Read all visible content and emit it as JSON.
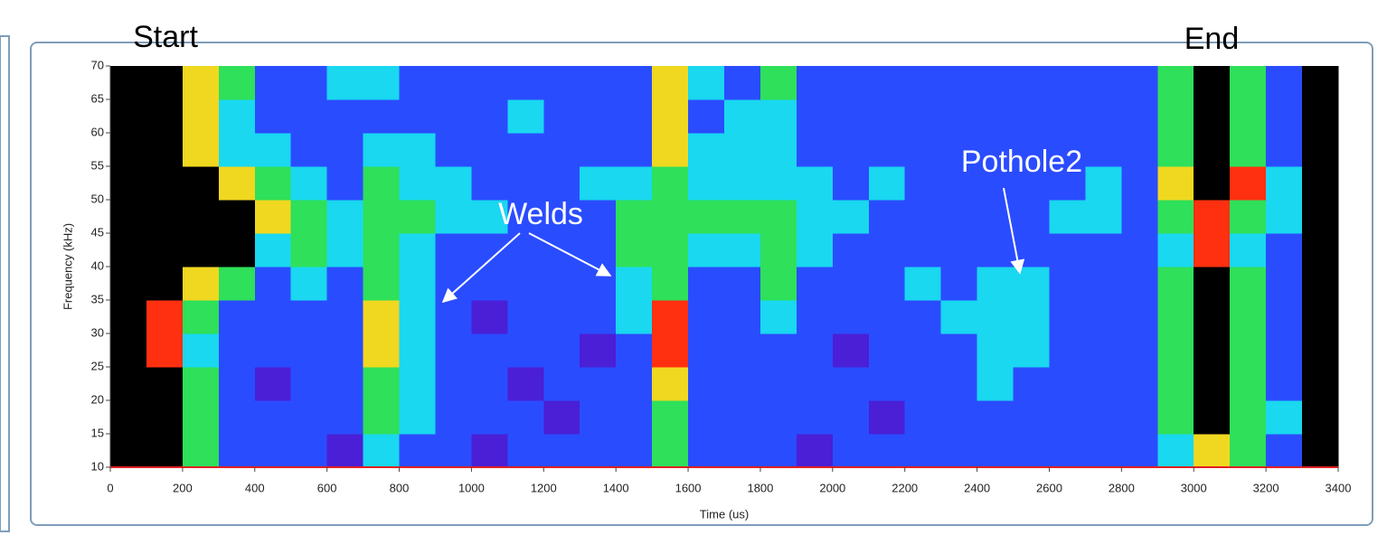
{
  "chart_data": {
    "type": "heatmap",
    "title": "Start",
    "end_label": "End",
    "annotations": [
      "Welds",
      "Pothole2"
    ],
    "x_label": "Time (us)",
    "y_label": "Frequency (kHz)",
    "xlim": [
      0,
      3400
    ],
    "ylim": [
      10,
      70
    ],
    "xticks": [
      0,
      200,
      400,
      600,
      800,
      1000,
      1200,
      1400,
      1600,
      1800,
      2000,
      2200,
      2400,
      2600,
      2800,
      3000,
      3200,
      3400
    ],
    "yticks": [
      10,
      15,
      20,
      25,
      30,
      35,
      40,
      45,
      50,
      55,
      60,
      65,
      70
    ],
    "colors": [
      "#4a1fd6",
      "#2a4cff",
      "#19d8f0",
      "#2ee05a",
      "#f0d820",
      "#ff3010",
      "#000000"
    ],
    "values": [
      [
        6,
        6,
        6,
        6,
        6,
        6,
        6,
        6,
        6,
        6,
        6,
        6
      ],
      [
        6,
        6,
        6,
        5,
        5,
        6,
        6,
        6,
        6,
        6,
        6,
        6
      ],
      [
        3,
        3,
        3,
        2,
        3,
        4,
        6,
        6,
        6,
        4,
        4,
        4
      ],
      [
        1,
        1,
        1,
        1,
        1,
        3,
        6,
        6,
        4,
        2,
        2,
        3
      ],
      [
        1,
        1,
        0,
        1,
        1,
        1,
        2,
        4,
        3,
        2,
        1,
        1
      ],
      [
        1,
        1,
        1,
        1,
        1,
        2,
        3,
        3,
        2,
        1,
        1,
        1
      ],
      [
        0,
        1,
        1,
        1,
        1,
        1,
        2,
        2,
        1,
        1,
        1,
        2
      ],
      [
        2,
        3,
        3,
        4,
        4,
        3,
        3,
        3,
        3,
        2,
        1,
        2
      ],
      [
        1,
        2,
        2,
        2,
        2,
        2,
        2,
        3,
        2,
        2,
        1,
        1
      ],
      [
        1,
        1,
        1,
        1,
        1,
        1,
        1,
        2,
        2,
        1,
        1,
        1
      ],
      [
        0,
        1,
        1,
        1,
        0,
        1,
        1,
        2,
        1,
        1,
        1,
        1
      ],
      [
        1,
        1,
        0,
        1,
        1,
        1,
        1,
        1,
        1,
        1,
        2,
        1
      ],
      [
        1,
        0,
        1,
        1,
        1,
        1,
        1,
        1,
        1,
        1,
        1,
        1
      ],
      [
        1,
        1,
        1,
        0,
        1,
        1,
        1,
        1,
        2,
        1,
        1,
        1
      ],
      [
        1,
        1,
        1,
        1,
        2,
        2,
        3,
        3,
        2,
        1,
        1,
        1
      ],
      [
        3,
        3,
        4,
        5,
        5,
        3,
        3,
        3,
        3,
        4,
        4,
        4
      ],
      [
        1,
        1,
        1,
        1,
        1,
        1,
        2,
        3,
        2,
        2,
        1,
        2
      ],
      [
        1,
        1,
        1,
        1,
        1,
        1,
        2,
        3,
        2,
        2,
        2,
        1
      ],
      [
        1,
        1,
        1,
        1,
        2,
        3,
        3,
        3,
        2,
        2,
        2,
        3
      ],
      [
        0,
        1,
        1,
        1,
        1,
        1,
        2,
        2,
        2,
        1,
        1,
        1
      ],
      [
        1,
        1,
        1,
        0,
        1,
        1,
        1,
        2,
        1,
        1,
        1,
        1
      ],
      [
        1,
        0,
        1,
        1,
        1,
        1,
        1,
        1,
        2,
        1,
        1,
        1
      ],
      [
        1,
        1,
        1,
        1,
        1,
        2,
        1,
        1,
        1,
        1,
        1,
        1
      ],
      [
        1,
        1,
        1,
        1,
        2,
        1,
        1,
        1,
        1,
        1,
        1,
        1
      ],
      [
        1,
        1,
        2,
        2,
        2,
        2,
        1,
        1,
        1,
        1,
        1,
        1
      ],
      [
        1,
        1,
        1,
        2,
        2,
        2,
        1,
        1,
        1,
        1,
        1,
        1
      ],
      [
        1,
        1,
        1,
        1,
        1,
        1,
        1,
        2,
        1,
        1,
        1,
        1
      ],
      [
        1,
        1,
        1,
        1,
        1,
        1,
        1,
        2,
        2,
        1,
        1,
        1
      ],
      [
        1,
        1,
        1,
        1,
        1,
        1,
        1,
        1,
        1,
        1,
        1,
        1
      ],
      [
        2,
        3,
        3,
        3,
        3,
        3,
        2,
        3,
        4,
        3,
        3,
        3
      ],
      [
        4,
        6,
        6,
        6,
        6,
        6,
        5,
        5,
        6,
        6,
        6,
        6
      ],
      [
        3,
        3,
        3,
        3,
        3,
        3,
        2,
        3,
        5,
        3,
        3,
        3
      ],
      [
        1,
        2,
        1,
        1,
        1,
        1,
        1,
        2,
        2,
        1,
        1,
        1
      ],
      [
        6,
        6,
        6,
        6,
        6,
        6,
        6,
        6,
        6,
        6,
        6,
        6
      ]
    ]
  }
}
